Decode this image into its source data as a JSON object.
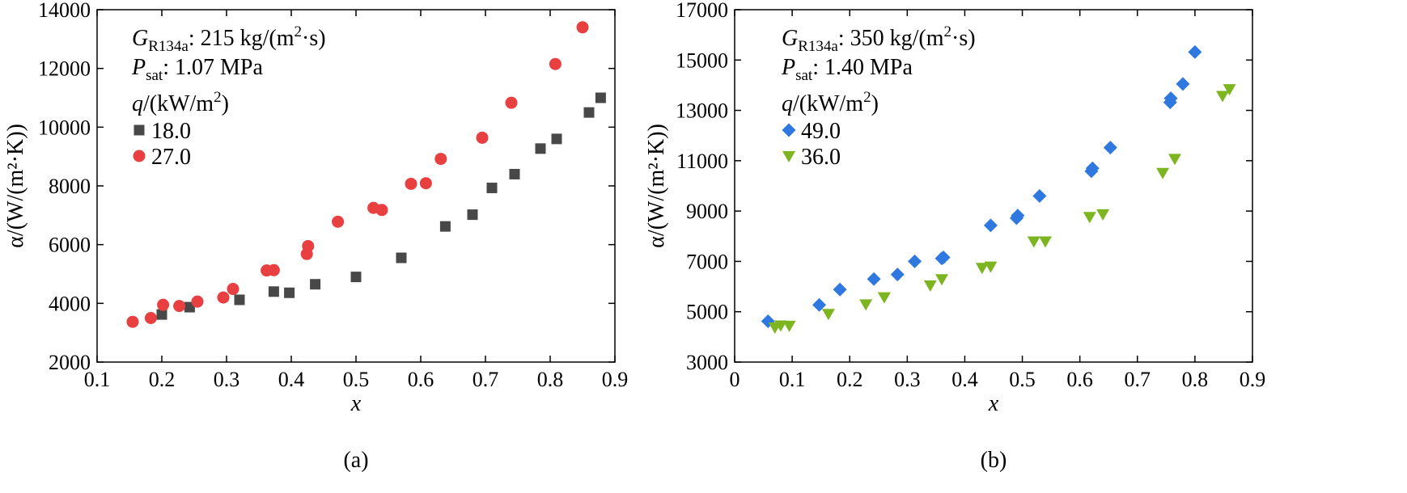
{
  "chart_data": [
    {
      "type": "scatter",
      "panel_label": "(a)",
      "xlabel": "x",
      "ylabel": "α/(W/(m²·K))",
      "xlim": [
        0.1,
        0.9
      ],
      "ylim": [
        2000,
        14000
      ],
      "xticks": [
        "0.1",
        "0.2",
        "0.3",
        "0.4",
        "0.5",
        "0.6",
        "0.7",
        "0.8",
        "0.9"
      ],
      "yticks": [
        "2000",
        "4000",
        "6000",
        "8000",
        "10000",
        "12000",
        "14000"
      ],
      "annotations": {
        "mass_flux": {
          "symbol": "G",
          "subscript": "R134a",
          "value": ": 215 kg/(m",
          "sup": "2",
          "tail": "·s)"
        },
        "pressure": {
          "symbol": "P",
          "subscript": "sat",
          "value": ": 1.07 MPa"
        },
        "legend_title": {
          "prefix": "q",
          "text": "/(kW/m",
          "sup": "2",
          "tail": ")"
        }
      },
      "series": [
        {
          "name": "18.0",
          "marker": "square",
          "color": "#484848",
          "x": [
            0.2,
            0.243,
            0.32,
            0.373,
            0.397,
            0.437,
            0.5,
            0.57,
            0.638,
            0.68,
            0.71,
            0.745,
            0.785,
            0.81,
            0.86,
            0.878
          ],
          "y": [
            3620,
            3870,
            4120,
            4400,
            4360,
            4650,
            4900,
            5550,
            6620,
            7020,
            7930,
            8400,
            9270,
            9600,
            10500,
            11000
          ]
        },
        {
          "name": "27.0",
          "marker": "circle",
          "color": "#e84040",
          "x": [
            0.155,
            0.183,
            0.202,
            0.227,
            0.255,
            0.295,
            0.31,
            0.362,
            0.373,
            0.424,
            0.426,
            0.472,
            0.527,
            0.54,
            0.585,
            0.608,
            0.631,
            0.695,
            0.74,
            0.808,
            0.85
          ],
          "y": [
            3370,
            3500,
            3950,
            3910,
            4060,
            4200,
            4490,
            5120,
            5130,
            5680,
            5950,
            6780,
            7250,
            7180,
            8070,
            8090,
            8920,
            9640,
            10830,
            12150,
            13400
          ]
        }
      ]
    },
    {
      "type": "scatter",
      "panel_label": "(b)",
      "xlabel": "x",
      "ylabel": "α/(W/(m²·K))",
      "xlim": [
        0,
        0.9
      ],
      "ylim": [
        3000,
        17000
      ],
      "xticks": [
        "0",
        "0.1",
        "0.2",
        "0.3",
        "0.4",
        "0.5",
        "0.6",
        "0.7",
        "0.8",
        "0.9"
      ],
      "yticks": [
        "3000",
        "5000",
        "7000",
        "9000",
        "11000",
        "13000",
        "15000",
        "17000"
      ],
      "annotations": {
        "mass_flux": {
          "symbol": "G",
          "subscript": "R134a",
          "value": ": 350 kg/(m",
          "sup": "2",
          "tail": "·s)"
        },
        "pressure": {
          "symbol": "P",
          "subscript": "sat",
          "value": ": 1.40 MPa"
        },
        "legend_title": {
          "prefix": "q",
          "text": "/(kW/m",
          "sup": "2",
          "tail": ")"
        }
      },
      "series": [
        {
          "name": "49.0",
          "marker": "diamond",
          "color": "#2f78e0",
          "x": [
            0.058,
            0.147,
            0.183,
            0.242,
            0.283,
            0.313,
            0.36,
            0.363,
            0.445,
            0.49,
            0.492,
            0.53,
            0.62,
            0.622,
            0.653,
            0.757,
            0.758,
            0.779,
            0.8
          ],
          "y": [
            4620,
            5270,
            5880,
            6300,
            6480,
            7000,
            7120,
            7160,
            8430,
            8720,
            8820,
            9600,
            10580,
            10700,
            11520,
            13320,
            13480,
            14050,
            15320
          ]
        },
        {
          "name": "36.0",
          "marker": "triangle-down",
          "color": "#7cb520",
          "x": [
            0.07,
            0.08,
            0.095,
            0.163,
            0.228,
            0.26,
            0.34,
            0.36,
            0.43,
            0.445,
            0.52,
            0.54,
            0.617,
            0.64,
            0.744,
            0.765,
            0.848,
            0.86
          ],
          "y": [
            4380,
            4460,
            4450,
            4920,
            5300,
            5580,
            6050,
            6300,
            6750,
            6800,
            7800,
            7800,
            8770,
            8880,
            10520,
            11080,
            13580,
            13850
          ]
        }
      ]
    }
  ]
}
